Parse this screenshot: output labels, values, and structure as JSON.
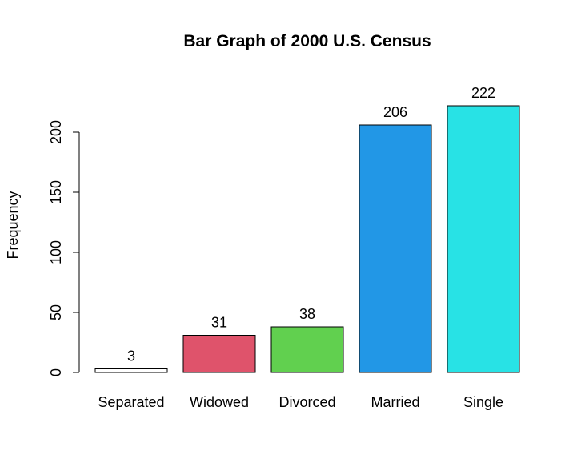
{
  "chart_data": {
    "type": "bar",
    "title": "Bar Graph of 2000 U.S. Census",
    "xlabel": "",
    "ylabel": "Frequency",
    "categories": [
      "Separated",
      "Widowed",
      "Divorced",
      "Married",
      "Single"
    ],
    "values": [
      3,
      31,
      38,
      206,
      222
    ],
    "data_labels": [
      "3",
      "31",
      "38",
      "206",
      "222"
    ],
    "colors": [
      "#ffffff",
      "#df536b",
      "#61d04f",
      "#2297e6",
      "#28e2e5"
    ],
    "ylim": [
      0,
      222
    ],
    "yticks": [
      0,
      50,
      100,
      150,
      200
    ],
    "grid": false,
    "legend": "none"
  }
}
